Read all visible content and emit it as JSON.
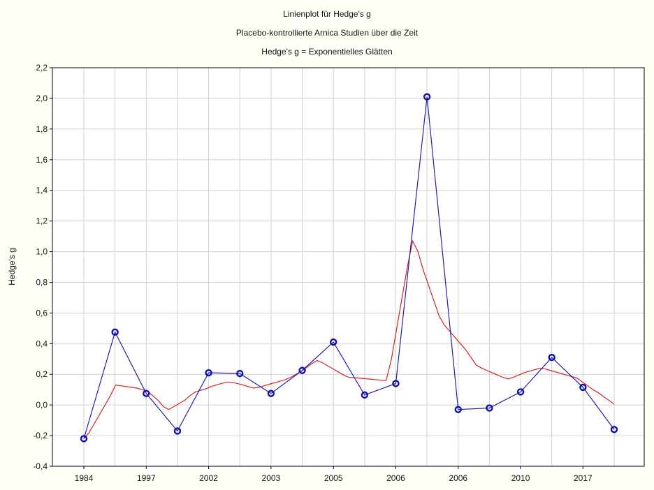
{
  "chart_data": {
    "type": "line",
    "title": "Linienplot für Hedge's g",
    "subtitle": "Placebo-kontrollierte Arnica Studien über die Zeit",
    "subtitle2": "Hedge's g = Exponentielles Glätten",
    "xlabel": "",
    "ylabel": "Hedge's g",
    "ylim": [
      -0.4,
      2.2
    ],
    "yticks": [
      "-0,4",
      "-0,2",
      "0,0",
      "0,2",
      "0,4",
      "0,6",
      "0,8",
      "1,0",
      "1,2",
      "1,4",
      "1,6",
      "1,8",
      "2,0",
      "2,2"
    ],
    "xtick_labels": [
      "1984",
      "1997",
      "2002",
      "2003",
      "2005",
      "2006",
      "2006",
      "2010",
      "2017"
    ],
    "grid": true,
    "series": [
      {
        "color": "#1f1fa8",
        "marker": "circle",
        "values": [
          -0.22,
          0.475,
          0.075,
          -0.17,
          0.21,
          0.205,
          0.075,
          0.225,
          0.41,
          0.065,
          0.14,
          2.01,
          -0.03,
          -0.02,
          0.085,
          0.31,
          0.115,
          -0.16
        ]
      },
      {
        "color": "#d42020",
        "marker": "none",
        "values": [
          -0.22,
          -0.18,
          -0.12,
          -0.06,
          0.0,
          0.06,
          0.13,
          0.125,
          0.12,
          0.115,
          0.11,
          0.1,
          0.09,
          0.06,
          0.03,
          -0.01,
          -0.03,
          -0.01,
          0.01,
          0.03,
          0.06,
          0.085,
          0.095,
          0.105,
          0.12,
          0.13,
          0.14,
          0.15,
          0.145,
          0.14,
          0.13,
          0.12,
          0.11,
          0.115,
          0.125,
          0.135,
          0.145,
          0.155,
          0.165,
          0.18,
          0.2,
          0.22,
          0.245,
          0.27,
          0.29,
          0.275,
          0.255,
          0.235,
          0.215,
          0.195,
          0.18,
          0.178,
          0.175,
          0.172,
          0.168,
          0.165,
          0.162,
          0.159,
          0.3,
          0.5,
          0.7,
          0.9,
          1.07,
          1.0,
          0.88,
          0.78,
          0.68,
          0.58,
          0.52,
          0.48,
          0.44,
          0.4,
          0.36,
          0.31,
          0.26,
          0.24,
          0.225,
          0.21,
          0.195,
          0.18,
          0.17,
          0.18,
          0.195,
          0.21,
          0.22,
          0.23,
          0.24,
          0.235,
          0.225,
          0.215,
          0.205,
          0.195,
          0.185,
          0.175,
          0.15,
          0.125,
          0.1,
          0.08,
          0.055,
          0.03,
          0.005
        ]
      }
    ]
  }
}
